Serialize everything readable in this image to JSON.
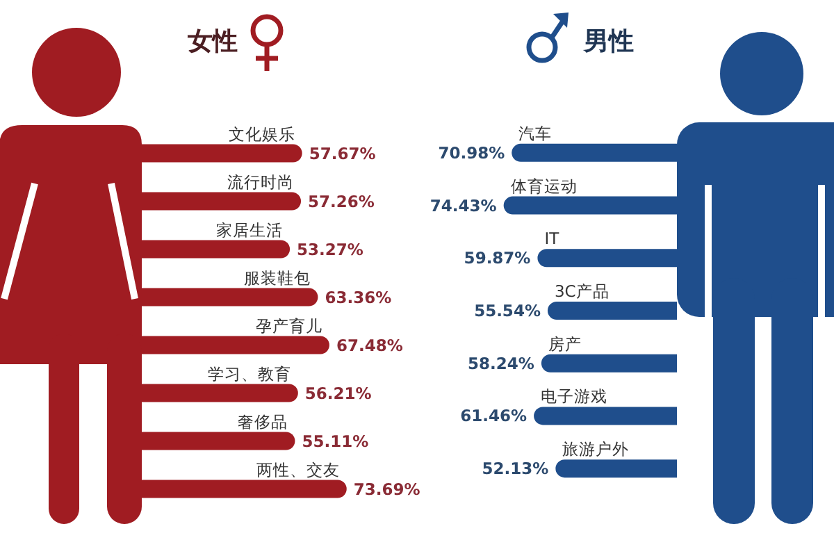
{
  "chart_data": [
    {
      "type": "bar",
      "orientation": "horizontal",
      "title": "女性",
      "categories": [
        "文化娱乐",
        "流行时尚",
        "家居生活",
        "服装鞋包",
        "孕产育儿",
        "学习、教育",
        "奢侈品",
        "两性、交友"
      ],
      "values": [
        57.67,
        57.26,
        53.27,
        63.36,
        67.48,
        56.21,
        55.11,
        73.69
      ],
      "value_labels": [
        "57.67%",
        "57.26%",
        "53.27%",
        "63.36%",
        "67.48%",
        "56.21%",
        "55.11%",
        "73.69%"
      ],
      "color": "#a01c22",
      "tick_labels": "y"
    },
    {
      "type": "bar",
      "orientation": "horizontal",
      "title": "男性",
      "categories": [
        "汽车",
        "体育运动",
        "IT",
        "3C产品",
        "房产",
        "电子游戏",
        "旅游户外"
      ],
      "values": [
        70.98,
        74.43,
        59.87,
        55.54,
        58.24,
        61.46,
        52.13
      ],
      "value_labels": [
        "70.98%",
        "74.43%",
        "59.87%",
        "55.54%",
        "58.24%",
        "61.46%",
        "52.13%"
      ],
      "color": "#1f4e8c",
      "tick_labels": "y"
    }
  ]
}
